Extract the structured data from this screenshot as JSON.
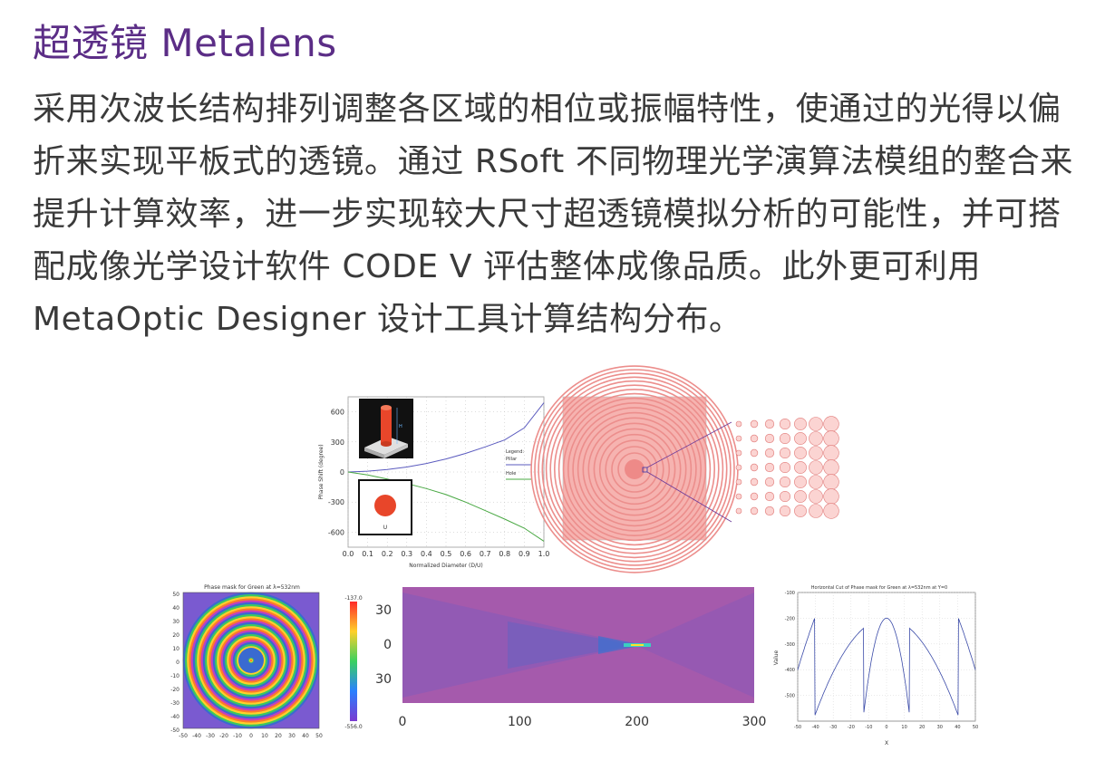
{
  "header": {
    "title": "超透镜 Metalens"
  },
  "body": {
    "paragraph": "采用次波长结构排列调整各区域的相位或振幅特性，使通过的光得以偏折来实现平板式的透镜。通过 RSoft 不同物理光学演算法模组的整合来提升计算效率，进一步实现较大尺寸超透镜模拟分析的可能性，并可搭配成像光学设计软件 CODE V 评估整体成像品质。此外更可利用 MetaOptic Designer 设计工具计算结构分布。"
  },
  "figures": {
    "phase_chart": {
      "pillar_label_h": "H",
      "hole_label_u": "U"
    },
    "phase_mask": {
      "title": "Phase mask for Green at λ=532nm"
    },
    "colorbar": {
      "max": "-137.0",
      "min": "-556.0"
    },
    "hcut": {
      "title": "Horizontal Cut of Phase mask for Green at λ=532nm at Y=0"
    }
  },
  "chart_data": [
    {
      "type": "line",
      "title": "",
      "xlabel": "Normalized Diameter (D/U)",
      "ylabel": "Phase Shift (degree)",
      "xlim": [
        0,
        1
      ],
      "ylim": [
        -750,
        750
      ],
      "x_ticks": [
        "0.0",
        "0.1",
        "0.2",
        "0.3",
        "0.4",
        "0.5",
        "0.6",
        "0.7",
        "0.8",
        "0.9",
        "1.0"
      ],
      "y_ticks": [
        "600",
        "300",
        "0",
        "-300",
        "-600"
      ],
      "legend": {
        "title": "Legend:",
        "position": "right"
      },
      "series": [
        {
          "name": "Pillar",
          "color": "#5b5bbf",
          "x": [
            0,
            0.1,
            0.2,
            0.3,
            0.4,
            0.5,
            0.6,
            0.7,
            0.8,
            0.9,
            1.0
          ],
          "values": [
            0,
            8,
            25,
            50,
            85,
            130,
            185,
            250,
            320,
            440,
            690
          ]
        },
        {
          "name": "Hole",
          "color": "#49a843",
          "x": [
            0,
            0.1,
            0.2,
            0.3,
            0.4,
            0.5,
            0.6,
            0.7,
            0.8,
            0.9,
            1.0
          ],
          "values": [
            0,
            -30,
            -70,
            -115,
            -165,
            -225,
            -300,
            -385,
            -470,
            -560,
            -690
          ]
        }
      ]
    },
    {
      "type": "heatmap",
      "title": "Phase mask for Green at λ=532nm",
      "xlim": [
        -50,
        50
      ],
      "ylim": [
        -50,
        50
      ],
      "x_ticks": [
        "-50",
        "-40",
        "-30",
        "-20",
        "-10",
        "0",
        "10",
        "20",
        "30",
        "40",
        "50"
      ],
      "y_ticks": [
        "50",
        "40",
        "30",
        "20",
        "10",
        "0",
        "-10",
        "-20",
        "-30",
        "-40",
        "-50"
      ],
      "colorbar_range": [
        -556.0,
        -137.0
      ]
    },
    {
      "type": "heatmap",
      "title": "",
      "xlim": [
        0,
        300
      ],
      "ylim": [
        -45,
        45
      ],
      "x_ticks": [
        "0",
        "100",
        "200",
        "300"
      ],
      "y_ticks": [
        "30",
        "0",
        "30"
      ]
    },
    {
      "type": "line",
      "title": "Horizontal Cut of Phase mask for Green at λ=532nm at Y=0",
      "xlabel": "X",
      "ylabel": "Value",
      "xlim": [
        -50,
        50
      ],
      "ylim": [
        -600,
        -100
      ],
      "x_ticks": [
        "-50",
        "-40",
        "-30",
        "-20",
        "-10",
        "0",
        "10",
        "20",
        "30",
        "40",
        "50"
      ],
      "y_ticks": [
        "-100",
        "-200",
        "-300",
        "-400",
        "-500"
      ],
      "series": [
        {
          "name": "",
          "color": "#3a4aa8",
          "center": -200,
          "min": -580
        }
      ]
    }
  ]
}
